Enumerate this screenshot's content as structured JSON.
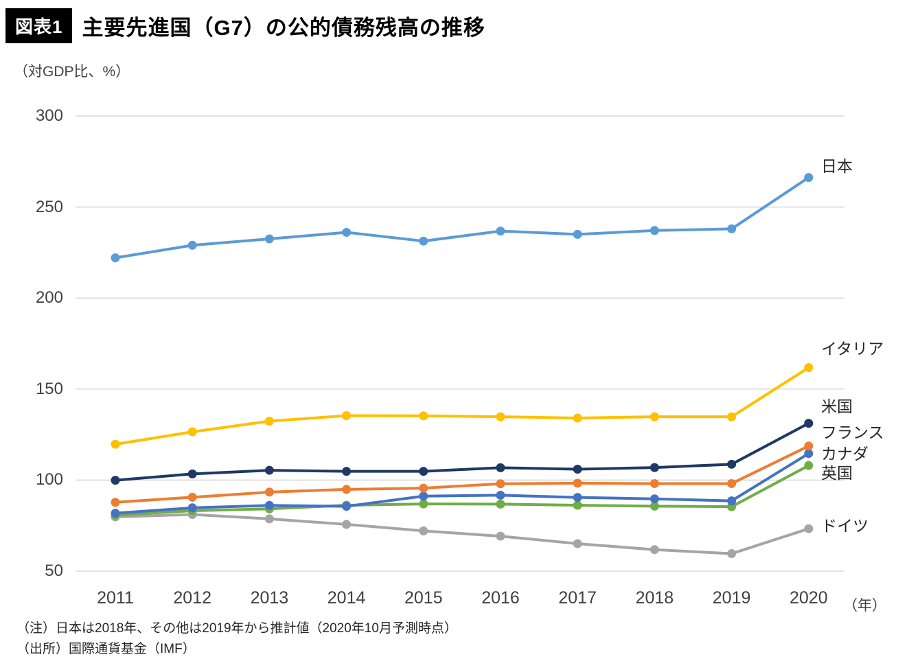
{
  "header": {
    "badge": "図表1",
    "title": "主要先進国（G7）の公的債務残高の推移",
    "unit_label": "（対GDP比、%）"
  },
  "chart_data": {
    "type": "line",
    "x": [
      2011,
      2012,
      2013,
      2014,
      2015,
      2016,
      2017,
      2018,
      2019,
      2020
    ],
    "x_axis_suffix": "（年）",
    "ylim": [
      50,
      300
    ],
    "yticks": [
      50,
      100,
      150,
      200,
      250,
      300
    ],
    "grid": "horizontal",
    "legend_position": "right-of-line-ends",
    "series": [
      {
        "name": "日本",
        "color": "#5B9BD5",
        "label_dy": -19,
        "values": [
          222.1,
          229.0,
          232.5,
          236.1,
          231.3,
          236.8,
          235.0,
          237.1,
          238.0,
          266.2
        ]
      },
      {
        "name": "イタリア",
        "color": "#FFC000",
        "label_dy": -30,
        "values": [
          119.7,
          126.5,
          132.4,
          135.4,
          135.3,
          134.8,
          134.1,
          134.8,
          134.8,
          161.8
        ]
      },
      {
        "name": "米国",
        "color": "#1F3864",
        "label_dy": -27,
        "values": [
          99.9,
          103.4,
          105.4,
          104.8,
          104.8,
          106.8,
          106.0,
          106.9,
          108.7,
          131.2
        ]
      },
      {
        "name": "フランス",
        "color": "#ED7D31",
        "label_dy": -22,
        "values": [
          87.8,
          90.6,
          93.4,
          94.9,
          95.6,
          98.0,
          98.3,
          98.1,
          98.1,
          118.7
        ]
      },
      {
        "name": "カナダ",
        "color": "#4472C4",
        "label_dy": -2,
        "values": [
          81.8,
          84.8,
          86.1,
          85.6,
          91.2,
          91.7,
          90.5,
          89.7,
          88.6,
          114.6
        ]
      },
      {
        "name": "英国",
        "color": "#70AD47",
        "label_dy": 9,
        "values": [
          80.8,
          83.2,
          84.2,
          86.2,
          86.9,
          86.8,
          86.2,
          85.7,
          85.4,
          108.0
        ]
      },
      {
        "name": "ドイツ",
        "color": "#A5A5A5",
        "label_dy": -6,
        "values": [
          79.8,
          81.1,
          78.7,
          75.7,
          72.1,
          69.2,
          65.1,
          61.8,
          59.6,
          73.3
        ]
      }
    ]
  },
  "footnotes": {
    "note": "（注）日本は2018年、その他は2019年から推計値（2020年10月予測時点）",
    "source": "（出所）国際通貨基金（IMF）"
  }
}
